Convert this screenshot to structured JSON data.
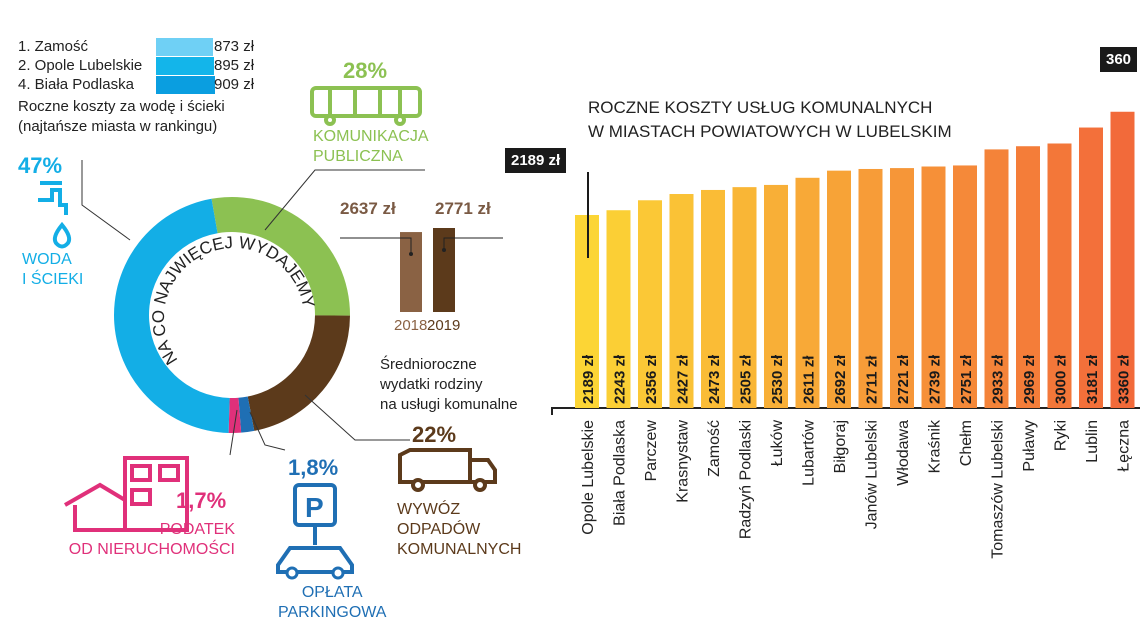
{
  "colors": {
    "water": "#13aee6",
    "transport": "#8cc152",
    "waste": "#5c3a1b",
    "parking": "#1f6fb4",
    "tax": "#e0307a",
    "bar_start": "#fcd535",
    "bar_end": "#f26a3a"
  },
  "water_ranking": {
    "items": [
      {
        "label": "1. Zamość",
        "value": 873,
        "value_label": "873 zł",
        "color": "#6fd0f5"
      },
      {
        "label": "2. Opole Lubelskie",
        "value": 895,
        "value_label": "895 zł",
        "color": "#13b5ea"
      },
      {
        "label": "4. Biała Podlaska",
        "value": 909,
        "value_label": "909 zł",
        "color": "#0a9ee0"
      }
    ],
    "caption_line1": "Roczne koszty za wodę i ścieki",
    "caption_line2": "(najtańsze miasta w rankingu)"
  },
  "chart_data": [
    {
      "type": "pie",
      "title": "NA CO NAJWIĘCEJ WYDAJEMY",
      "slices": [
        {
          "label": "KOMUNIKACJA PUBLICZNA",
          "label_line1": "KOMUNIKACJA",
          "label_line2": "PUBLICZNA",
          "value": 28,
          "value_label": "28%",
          "icon": "bus-icon",
          "color": "#8cc152"
        },
        {
          "label": "WYWÓZ ODPADÓW KOMUNALNYCH",
          "label_line1": "WYWÓZ",
          "label_line2": "ODPADÓW",
          "label_line3": "KOMUNALNYCH",
          "value": 22,
          "value_label": "22%",
          "icon": "garbage-truck-icon",
          "color": "#5c3a1b"
        },
        {
          "label": "OPŁATA PARKINGOWA",
          "label_line1": "OPŁATA",
          "label_line2": "PARKINGOWA",
          "value": 1.8,
          "value_label": "1,8%",
          "icon": "parking-icon",
          "color": "#1f6fb4"
        },
        {
          "label": "PODATEK OD NIERUCHOMOŚCI",
          "label_line1": "PODATEK",
          "label_line2": "OD NIERUCHOMOŚCI",
          "value": 1.7,
          "value_label": "1,7%",
          "icon": "house-icon",
          "color": "#e0307a"
        },
        {
          "label": "WODA I ŚCIEKI",
          "label_line1": "WODA",
          "label_line2": "I ŚCIEKI",
          "value": 47,
          "value_label": "47%",
          "icon": "water-tap-icon",
          "color": "#13aee6"
        }
      ]
    },
    {
      "type": "bar",
      "categories": [
        "2018",
        "2019"
      ],
      "values": [
        2637,
        2771
      ],
      "value_labels": [
        "2637 zł",
        "2771 zł"
      ],
      "colors": [
        "#8a6244",
        "#5c3a1b"
      ],
      "caption_line1": "Średnioroczne",
      "caption_line2": "wydatki rodziny",
      "caption_line3": "na usługi komunalne"
    },
    {
      "type": "bar",
      "title_line1": "ROCZNE KOSZTY USŁUG KOMUNALNYCH",
      "title_line2": "W MIASTACH POWIATOWYCH W LUBELSKIM",
      "categories": [
        "Opole Lubelskie",
        "Biała Podlaska",
        "Parczew",
        "Krasnystaw",
        "Zamość",
        "Radzyń Podlaski",
        "Łuków",
        "Lubartów",
        "Biłgoraj",
        "Janów Lubelski",
        "Włodawa",
        "Kraśnik",
        "Chełm",
        "Tomaszów Lubelski",
        "Puławy",
        "Ryki",
        "Lublin",
        "Łęczna"
      ],
      "values": [
        2189,
        2243,
        2356,
        2427,
        2473,
        2505,
        2530,
        2611,
        2692,
        2711,
        2721,
        2739,
        2751,
        2933,
        2969,
        3000,
        3181,
        3360
      ],
      "value_labels": [
        "2189 zł",
        "2243 zł",
        "2356 zł",
        "2427 zł",
        "2473 zł",
        "2505 zł",
        "2530 zł",
        "2611 zł",
        "2692 zł",
        "2711 zł",
        "2721 zł",
        "2739 zł",
        "2751 zł",
        "2933 zł",
        "2969 zł",
        "3000 zł",
        "3181 zł",
        "3360 zł"
      ],
      "ylim": [
        0,
        3600
      ],
      "grid": false,
      "callouts": {
        "min": "2189 zł",
        "max_partial": "360"
      }
    }
  ]
}
